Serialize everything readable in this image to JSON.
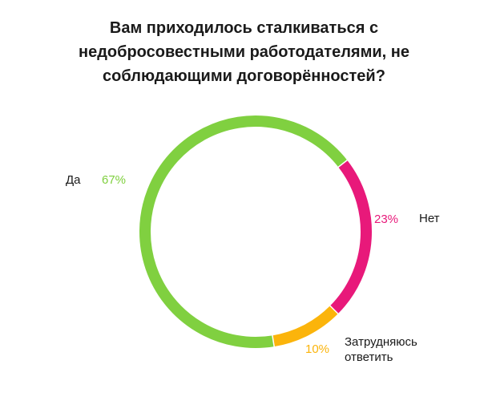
{
  "chart_data": {
    "type": "pie",
    "variant": "donut",
    "title": "Вам приходилось сталкиваться с недобросовестными работодателями, не соблюдающими договорённостей?",
    "slices": [
      {
        "label": "Да",
        "value": 67,
        "value_label": "67%",
        "color": "#80d040"
      },
      {
        "label": "Нет",
        "value": 23,
        "value_label": "23%",
        "color": "#e8197a"
      },
      {
        "label_lines": [
          "Затрудняюсь",
          "ответить"
        ],
        "value": 10,
        "value_label": "10%",
        "color": "#fbb40b"
      }
    ],
    "legend": "none"
  }
}
